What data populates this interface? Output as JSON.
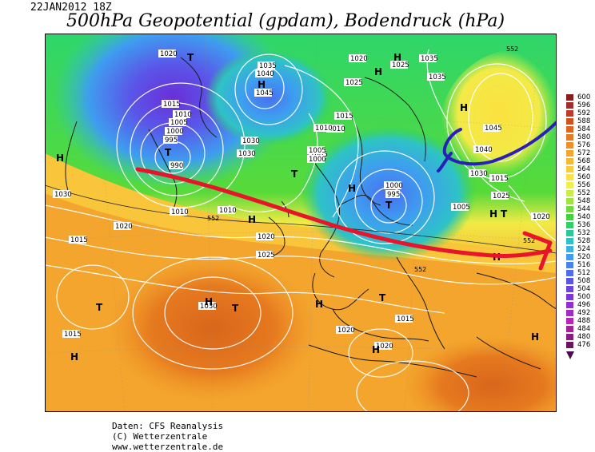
{
  "header": {
    "date": "22JAN2012 18Z",
    "title": "500hPa Geopotential (gpdam), Bodendruck (hPa)"
  },
  "credits": {
    "line1": "Daten: CFS Reanalysis",
    "line2": "(C) Wetterzentrale",
    "line3": "www.wetterzentrale.de"
  },
  "legend": {
    "levels": [
      "600",
      "596",
      "592",
      "588",
      "584",
      "580",
      "576",
      "572",
      "568",
      "564",
      "560",
      "556",
      "552",
      "548",
      "544",
      "540",
      "536",
      "532",
      "528",
      "524",
      "520",
      "516",
      "512",
      "508",
      "504",
      "500",
      "496",
      "492",
      "488",
      "484",
      "480",
      "476"
    ],
    "colors": [
      "#8b1a1a",
      "#a52a2a",
      "#c0392b",
      "#d2521a",
      "#e0661b",
      "#e87a1f",
      "#ef8f25",
      "#f5a42c",
      "#f8b833",
      "#fbcb3b",
      "#fde045",
      "#f2ee4a",
      "#c8ee45",
      "#9ee63e",
      "#6fdc3a",
      "#42d23c",
      "#2fcf6a",
      "#2ac99a",
      "#2ec3c6",
      "#36b4e6",
      "#3e9df0",
      "#4784f0",
      "#506cee",
      "#5a55e8",
      "#6a45e0",
      "#7d37d8",
      "#9130cf",
      "#a52ac4",
      "#b726b6",
      "#a81f9c",
      "#8c1a80",
      "#6a145e"
    ]
  },
  "map": {
    "pressure_labels": [
      "1020",
      "1015",
      "1010",
      "1005",
      "1000",
      "995",
      "990",
      "1025",
      "1030",
      "1035",
      "1040",
      "1045",
      "1020",
      "1015",
      "1010",
      "1005",
      "1000",
      "995",
      "1025",
      "1030",
      "1035",
      "1040",
      "1045",
      "1035",
      "1030",
      "1025",
      "1020",
      "1015",
      "1010",
      "1030",
      "1030",
      "1025",
      "1020",
      "1015",
      "1015",
      "1020",
      "1020",
      "1015",
      "1010",
      "1020",
      "1010",
      "1005",
      "1000",
      "1005"
    ],
    "highs": [
      "H",
      "H",
      "H",
      "H",
      "H",
      "H",
      "H",
      "H",
      "H",
      "H",
      "H",
      "H",
      "H",
      "H"
    ],
    "lows": [
      "T",
      "T",
      "T",
      "T",
      "T",
      "T",
      "T",
      "T"
    ],
    "contour_labels_552": [
      "552",
      "552",
      "552",
      "552"
    ],
    "annotation_colors": {
      "red_arrow": "#e8142a",
      "blue_arrow": "#2a1fb8"
    }
  }
}
